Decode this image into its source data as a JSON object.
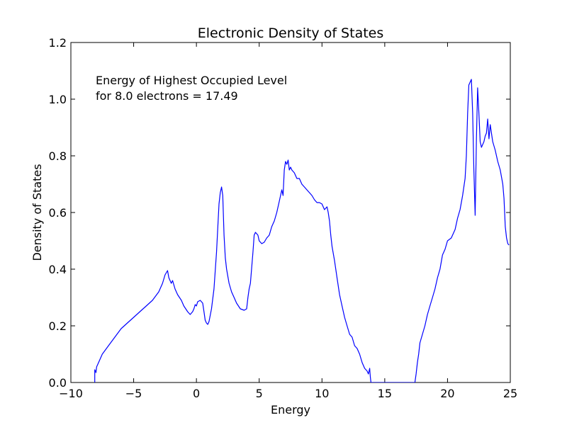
{
  "chart_data": {
    "type": "line",
    "title": "Electronic Density of States",
    "xlabel": "Energy",
    "ylabel": "Density of States",
    "xlim": [
      -10,
      25
    ],
    "ylim": [
      0,
      1.2
    ],
    "xticks": [
      -10,
      -5,
      0,
      5,
      10,
      15,
      20,
      25
    ],
    "xtick_labels": [
      "−10",
      "−5",
      "0",
      "5",
      "10",
      "15",
      "20",
      "25"
    ],
    "yticks": [
      0,
      0.2,
      0.4,
      0.6,
      0.8,
      1.0,
      1.2
    ],
    "ytick_labels": [
      "0.0",
      "0.2",
      "0.4",
      "0.6",
      "0.8",
      "1.0",
      "1.2"
    ],
    "grid": false,
    "annotation": [
      "Energy of Highest Occupied Level",
      "for 8.0 electrons = 17.49"
    ],
    "series": [
      {
        "color": "#0000ff",
        "x": [
          -8.1,
          -8.1,
          -8.0,
          -7.95,
          -7.9,
          -7.8,
          -7.5,
          -7.0,
          -6.5,
          -6.0,
          -5.5,
          -5.0,
          -4.5,
          -4.0,
          -3.5,
          -3.0,
          -2.7,
          -2.5,
          -2.3,
          -2.2,
          -2.1,
          -2.0,
          -1.9,
          -1.7,
          -1.5,
          -1.2,
          -1.0,
          -0.7,
          -0.5,
          -0.3,
          -0.2,
          -0.1,
          0.0,
          0.1,
          0.3,
          0.5,
          0.6,
          0.7,
          0.8,
          0.9,
          1.0,
          1.2,
          1.4,
          1.6,
          1.8,
          1.9,
          2.0,
          2.1,
          2.2,
          2.3,
          2.4,
          2.6,
          2.8,
          3.0,
          3.2,
          3.5,
          3.8,
          4.0,
          4.1,
          4.2,
          4.3,
          4.5,
          4.6,
          4.7,
          4.8,
          4.9,
          5.0,
          5.2,
          5.4,
          5.6,
          5.8,
          6.0,
          6.2,
          6.4,
          6.6,
          6.8,
          6.9,
          7.0,
          7.1,
          7.2,
          7.3,
          7.4,
          7.5,
          7.6,
          7.8,
          8.0,
          8.2,
          8.4,
          8.6,
          8.8,
          9.0,
          9.2,
          9.4,
          9.6,
          9.8,
          10.0,
          10.2,
          10.4,
          10.5,
          10.6,
          10.7,
          10.8,
          11.0,
          11.2,
          11.4,
          11.6,
          11.8,
          12.0,
          12.2,
          12.4,
          12.6,
          12.8,
          13.0,
          13.2,
          13.4,
          13.6,
          13.7,
          13.8,
          13.85,
          13.9,
          14.0,
          15.0,
          16.0,
          17.0,
          17.4,
          17.5,
          17.6,
          17.7,
          17.8,
          18.0,
          18.2,
          18.4,
          18.6,
          18.8,
          19.0,
          19.2,
          19.4,
          19.6,
          19.8,
          20.0,
          20.3,
          20.6,
          20.8,
          21.0,
          21.2,
          21.4,
          21.5,
          21.6,
          21.7,
          21.8,
          21.9,
          22.0,
          22.1,
          22.2,
          22.3,
          22.4,
          22.5,
          22.6,
          22.7,
          22.9,
          23.0,
          23.1,
          23.2,
          23.3,
          23.4,
          23.5,
          23.6,
          23.8,
          24.0,
          24.2,
          24.4,
          24.5,
          24.6,
          24.7,
          24.8,
          24.9
        ],
        "y": [
          0.0,
          0.045,
          0.035,
          0.055,
          0.06,
          0.07,
          0.1,
          0.13,
          0.16,
          0.19,
          0.21,
          0.23,
          0.25,
          0.27,
          0.29,
          0.32,
          0.35,
          0.38,
          0.395,
          0.37,
          0.36,
          0.35,
          0.36,
          0.33,
          0.31,
          0.29,
          0.27,
          0.25,
          0.24,
          0.25,
          0.26,
          0.275,
          0.27,
          0.285,
          0.29,
          0.28,
          0.25,
          0.22,
          0.21,
          0.205,
          0.215,
          0.26,
          0.33,
          0.46,
          0.63,
          0.67,
          0.69,
          0.66,
          0.52,
          0.44,
          0.4,
          0.35,
          0.32,
          0.3,
          0.28,
          0.26,
          0.255,
          0.26,
          0.3,
          0.33,
          0.35,
          0.46,
          0.52,
          0.53,
          0.525,
          0.52,
          0.5,
          0.49,
          0.495,
          0.51,
          0.52,
          0.55,
          0.57,
          0.6,
          0.64,
          0.68,
          0.66,
          0.75,
          0.78,
          0.77,
          0.785,
          0.75,
          0.76,
          0.75,
          0.74,
          0.72,
          0.72,
          0.7,
          0.69,
          0.68,
          0.67,
          0.66,
          0.645,
          0.635,
          0.635,
          0.63,
          0.61,
          0.62,
          0.6,
          0.57,
          0.52,
          0.48,
          0.43,
          0.37,
          0.31,
          0.27,
          0.23,
          0.2,
          0.17,
          0.16,
          0.13,
          0.12,
          0.1,
          0.07,
          0.05,
          0.04,
          0.03,
          0.05,
          0.02,
          0.0,
          0.0,
          0.0,
          0.0,
          0.0,
          0.0,
          0.03,
          0.07,
          0.1,
          0.14,
          0.17,
          0.2,
          0.24,
          0.27,
          0.3,
          0.33,
          0.37,
          0.4,
          0.45,
          0.47,
          0.5,
          0.51,
          0.54,
          0.58,
          0.61,
          0.66,
          0.72,
          0.8,
          0.95,
          1.05,
          1.06,
          1.07,
          0.95,
          0.75,
          0.59,
          0.86,
          1.04,
          0.95,
          0.85,
          0.83,
          0.85,
          0.87,
          0.88,
          0.93,
          0.86,
          0.91,
          0.88,
          0.85,
          0.82,
          0.78,
          0.75,
          0.7,
          0.65,
          0.55,
          0.51,
          0.49,
          0.485
        ]
      }
    ]
  }
}
